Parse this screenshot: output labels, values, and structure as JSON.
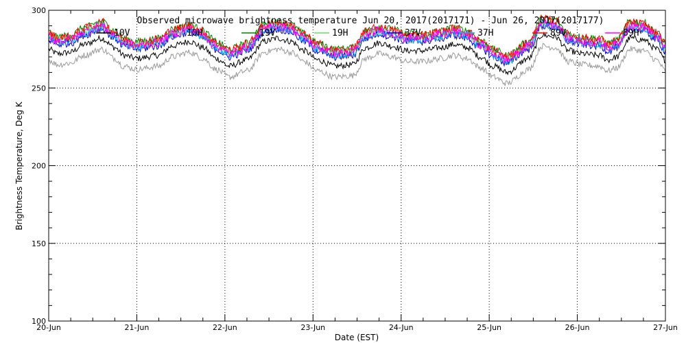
{
  "chart_data": {
    "type": "line",
    "title": "Observed microwave brightness temperature Jun 20, 2017(2017171) - Jun 26, 2017(2017177)",
    "xlabel": "Date (EST)",
    "ylabel": "Brightness Temperature, Deg K",
    "xlim": [
      0,
      7
    ],
    "ylim": [
      100,
      300
    ],
    "x_ticks": [
      {
        "x": 0,
        "label": "20-Jun"
      },
      {
        "x": 1,
        "label": "21-Jun"
      },
      {
        "x": 2,
        "label": "22-Jun"
      },
      {
        "x": 3,
        "label": "23-Jun"
      },
      {
        "x": 4,
        "label": "24-Jun"
      },
      {
        "x": 5,
        "label": "25-Jun"
      },
      {
        "x": 6,
        "label": "26-Jun"
      },
      {
        "x": 7,
        "label": "27-Jun"
      }
    ],
    "y_ticks": [
      100,
      150,
      200,
      250,
      300
    ],
    "x_minor_step": 0.25,
    "y_minor_step": 10,
    "grid": true,
    "legend_position": "top",
    "x_unit": "days since 20-Jun (EST)",
    "base_curve": {
      "x": [
        0,
        0.1,
        0.25,
        0.4,
        0.6,
        0.75,
        0.85,
        1.0,
        1.25,
        1.4,
        1.6,
        1.75,
        1.9,
        2.05,
        2.25,
        2.45,
        2.6,
        2.75,
        2.9,
        3.05,
        3.25,
        3.45,
        3.6,
        3.75,
        3.9,
        4.05,
        4.25,
        4.45,
        4.6,
        4.75,
        4.9,
        5.05,
        5.2,
        5.45,
        5.6,
        5.75,
        5.9,
        6.05,
        6.25,
        6.35,
        6.45,
        6.6,
        6.75,
        6.9,
        7.0
      ],
      "y": [
        283,
        280,
        281,
        286,
        290,
        284,
        279,
        277,
        279,
        285,
        288,
        284,
        277,
        272,
        276,
        288,
        290,
        288,
        282,
        276,
        272,
        273,
        284,
        287,
        285,
        282,
        282,
        284,
        286,
        284,
        278,
        272,
        268,
        277,
        292,
        291,
        282,
        280,
        279,
        276,
        278,
        290,
        289,
        283,
        276
      ]
    },
    "series": [
      {
        "name": "10V",
        "color": "#000000",
        "offset": -8,
        "noise": 2.0
      },
      {
        "name": "10H",
        "color": "#999999",
        "offset": -15,
        "noise": 2.0
      },
      {
        "name": "19V",
        "color": "#008000",
        "offset": 3,
        "noise": 2.2
      },
      {
        "name": "19H",
        "color": "#66dd66",
        "offset": 0.5,
        "noise": 2.2
      },
      {
        "name": "37V",
        "color": "#0000dd",
        "offset": -2,
        "noise": 2.5
      },
      {
        "name": "37H",
        "color": "#00aaff",
        "offset": -1,
        "noise": 2.5
      },
      {
        "name": "89V",
        "color": "#ff0000",
        "offset": 2,
        "noise": 3.0
      },
      {
        "name": "89H",
        "color": "#ff00ff",
        "offset": 0,
        "noise": 3.0
      }
    ]
  }
}
